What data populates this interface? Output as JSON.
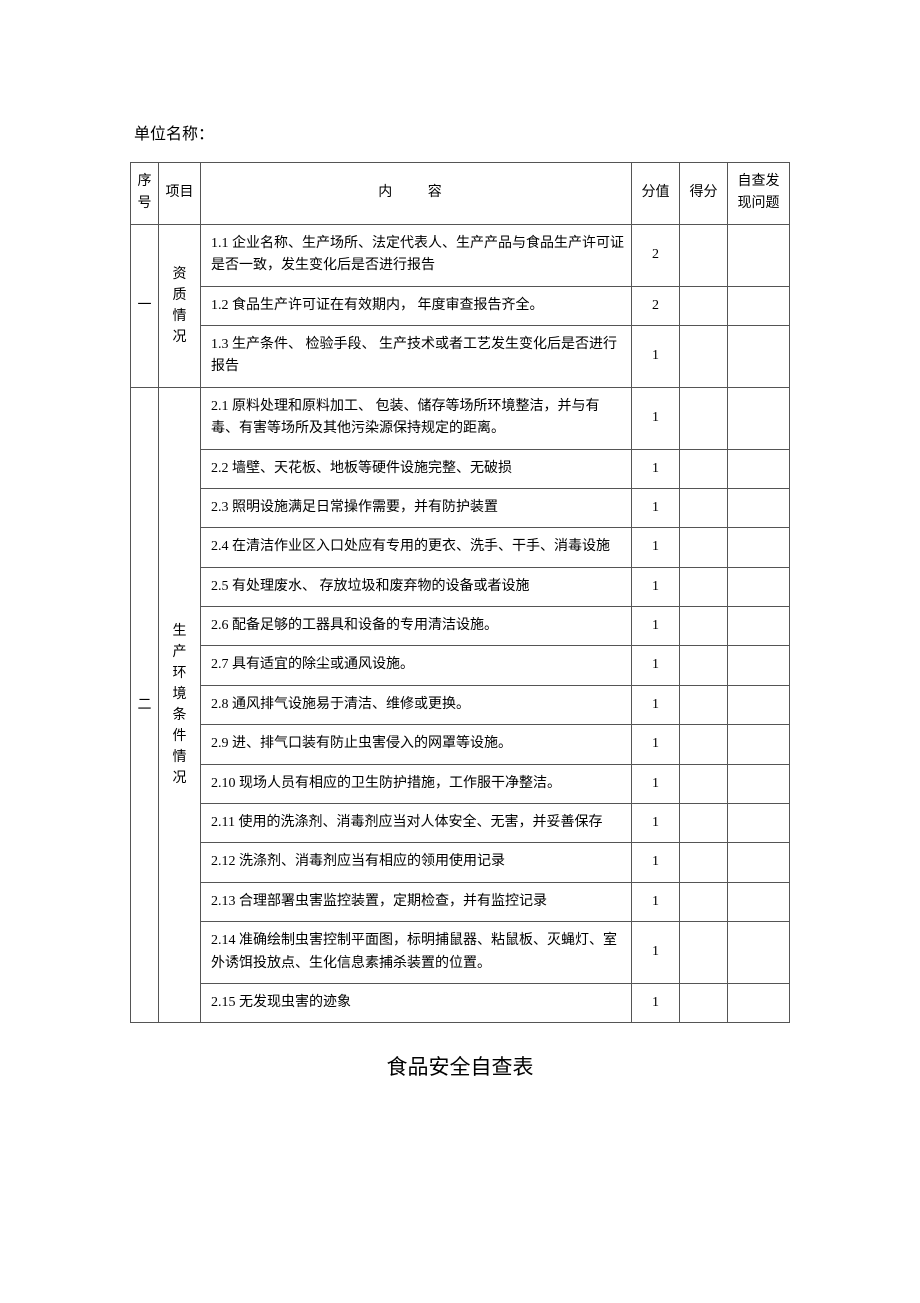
{
  "unit_label": "单位名称：",
  "header": {
    "seq": "序号",
    "item": "项目",
    "content": "内 容",
    "score": "分值",
    "got": "得分",
    "issue": "自查发现问题"
  },
  "sections": [
    {
      "seq": "一",
      "item": "资质情况",
      "rows": [
        {
          "content": "1.1 企业名称、生产场所、法定代表人、生产产品与食品生产许可证是否一致，发生变化后是否进行报告",
          "score": "2"
        },
        {
          "content": "1.2 食品生产许可证在有效期内， 年度审查报告齐全。",
          "score": "2"
        },
        {
          "content": "1.3 生产条件、 检验手段、 生产技术或者工艺发生变化后是否进行报告",
          "score": "1"
        }
      ]
    },
    {
      "seq": "二",
      "item": "生产环境条件情况",
      "rows": [
        {
          "content": "2.1 原料处理和原料加工、 包装、储存等场所环境整洁，并与有毒、有害等场所及其他污染源保持规定的距离。",
          "score": "1"
        },
        {
          "content": "2.2 墙壁、天花板、地板等硬件设施完整、无破损",
          "score": "1"
        },
        {
          "content": "2.3 照明设施满足日常操作需要，并有防护装置",
          "score": "1"
        },
        {
          "content": "2.4 在清洁作业区入口处应有专用的更衣、洗手、干手、消毒设施",
          "score": "1"
        },
        {
          "content": "2.5 有处理废水、 存放垃圾和废弃物的设备或者设施",
          "score": "1"
        },
        {
          "content": "2.6 配备足够的工器具和设备的专用清洁设施。",
          "score": "1"
        },
        {
          "content": "2.7 具有适宜的除尘或通风设施。",
          "score": "1"
        },
        {
          "content": "2.8 通风排气设施易于清洁、维修或更换。",
          "score": "1"
        },
        {
          "content": "2.9 进、排气口装有防止虫害侵入的网罩等设施。",
          "score": "1"
        },
        {
          "content": "2.10 现场人员有相应的卫生防护措施，工作服干净整洁。",
          "score": "1"
        },
        {
          "content": "2.11 使用的洗涤剂、消毒剂应当对人体安全、无害，并妥善保存",
          "score": "1"
        },
        {
          "content": "2.12 洗涤剂、消毒剂应当有相应的领用使用记录",
          "score": "1"
        },
        {
          "content": "2.13 合理部署虫害监控装置，定期检查，并有监控记录",
          "score": "1"
        },
        {
          "content": "2.14 准确绘制虫害控制平面图，标明捕鼠器、粘鼠板、灭蝇灯、室外诱饵投放点、生化信息素捕杀装置的位置。",
          "score": "1"
        },
        {
          "content": "2.15 无发现虫害的迹象",
          "score": "1"
        }
      ]
    }
  ],
  "footer_title": "食品安全自查表"
}
